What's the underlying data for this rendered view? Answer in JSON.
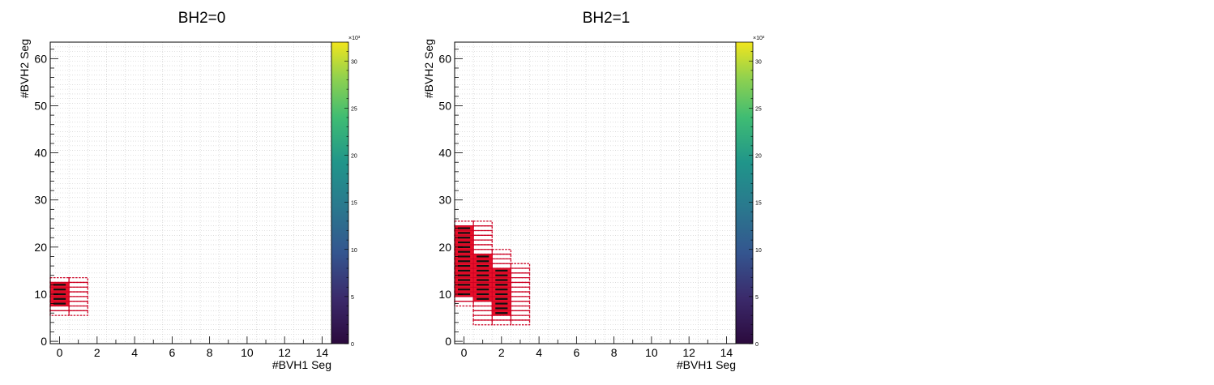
{
  "chart_data": [
    {
      "type": "heatmap",
      "title": "BH2=0",
      "xlabel": "#BVH1 Seg",
      "ylabel": "#BVH2 Seg",
      "xlim": [
        -0.5,
        14.5
      ],
      "ylim": [
        -0.5,
        63.5
      ],
      "x_ticks": [
        0,
        2,
        4,
        6,
        8,
        10,
        12,
        14
      ],
      "y_ticks": [
        0,
        10,
        20,
        30,
        40,
        50,
        60
      ],
      "grid": true,
      "colorbar": {
        "range": [
          0,
          32
        ],
        "ticks": [
          0,
          5,
          10,
          15,
          20,
          25,
          30
        ],
        "multiplier": "×10³"
      },
      "cells": [
        {
          "x": 0,
          "ylo": 8,
          "yhi": 12,
          "value": 30
        },
        {
          "x": 0,
          "ylo": 6,
          "yhi": 13,
          "value": 2
        },
        {
          "x": 1,
          "ylo": 6,
          "yhi": 13,
          "value": 1
        }
      ]
    },
    {
      "type": "heatmap",
      "title": "BH2=1",
      "xlabel": "#BVH1 Seg",
      "ylabel": "#BVH2 Seg",
      "xlim": [
        -0.5,
        14.5
      ],
      "ylim": [
        -0.5,
        63.5
      ],
      "x_ticks": [
        0,
        2,
        4,
        6,
        8,
        10,
        12,
        14
      ],
      "y_ticks": [
        0,
        10,
        20,
        30,
        40,
        50,
        60
      ],
      "grid": true,
      "colorbar": {
        "range": [
          0,
          32
        ],
        "ticks": [
          0,
          5,
          10,
          15,
          20,
          25,
          30
        ],
        "multiplier": "×10³"
      },
      "cells": [
        {
          "x": 0,
          "ylo": 10,
          "yhi": 24,
          "value": 30
        },
        {
          "x": 0,
          "ylo": 8,
          "yhi": 25,
          "value": 2
        },
        {
          "x": 1,
          "ylo": 9,
          "yhi": 18,
          "value": 30
        },
        {
          "x": 1,
          "ylo": 4,
          "yhi": 25,
          "value": 2
        },
        {
          "x": 2,
          "ylo": 6,
          "yhi": 15,
          "value": 30
        },
        {
          "x": 2,
          "ylo": 4,
          "yhi": 19,
          "value": 2
        },
        {
          "x": 3,
          "ylo": 4,
          "yhi": 16,
          "value": 1
        }
      ]
    }
  ]
}
